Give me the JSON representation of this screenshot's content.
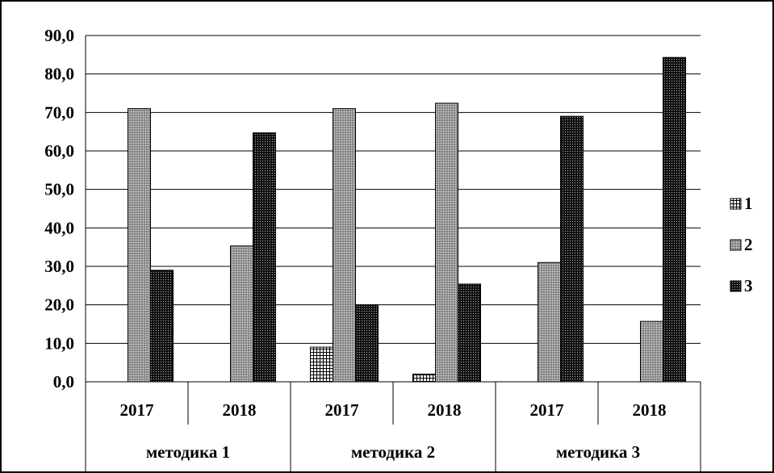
{
  "chart_data": {
    "type": "bar",
    "y_axis": {
      "ylim": [
        0,
        90
      ],
      "ticks": [
        "0,0",
        "10,0",
        "20,0",
        "30,0",
        "40,0",
        "50,0",
        "60,0",
        "70,0",
        "80,0",
        "90,0"
      ],
      "tick_values": [
        0,
        10,
        20,
        30,
        40,
        50,
        60,
        70,
        80,
        90
      ]
    },
    "grid": "horizontal",
    "legend_position": "right",
    "groups": [
      {
        "label": "методика 1",
        "years": [
          "2017",
          "2018"
        ]
      },
      {
        "label": "методика 2",
        "years": [
          "2017",
          "2018"
        ]
      },
      {
        "label": "методика 3",
        "years": [
          "2017",
          "2018"
        ]
      }
    ],
    "categories": [
      "методика 1 / 2017",
      "методика 1 / 2018",
      "методика 2 / 2017",
      "методика 2 / 2018",
      "методика 3 / 2017",
      "методика 3 / 2018"
    ],
    "series": [
      {
        "name": "1",
        "pattern": "grid",
        "values": [
          0,
          0,
          9.0,
          2.0,
          0,
          0
        ]
      },
      {
        "name": "2",
        "pattern": "gray-dots",
        "values": [
          71.0,
          35.3,
          71.0,
          72.4,
          31.0,
          15.7
        ]
      },
      {
        "name": "3",
        "pattern": "dark-dots",
        "values": [
          29.0,
          64.7,
          20.0,
          25.4,
          69.0,
          84.3
        ]
      }
    ]
  }
}
